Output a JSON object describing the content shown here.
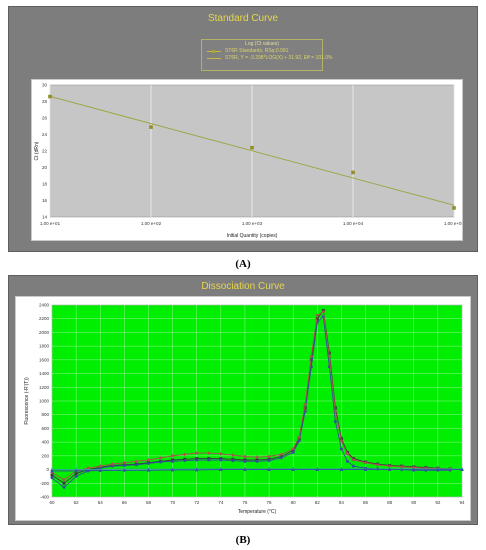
{
  "panel_a": {
    "title": "Standard Curve",
    "caption": "(A)",
    "legend_title": "Log (Ct values)",
    "legend_entries": [
      "ST6R Standards, RSq:0.991",
      "ST6R, Y = -3.298*LOG(X) + 31.92, Eff = 101.0%"
    ]
  },
  "panel_b": {
    "title": "Dissociation Curve",
    "caption": "(B)"
  },
  "colors": {
    "panel_bg": "#7d7d7d",
    "title": "#e6d84a",
    "plot_a_bg": "#c6c6c6",
    "plot_b_bg": "#00ee00",
    "fit_line": "#9aa33a",
    "grid": "#ffffff"
  },
  "chart_data": [
    {
      "type": "scatter",
      "title": "Standard Curve",
      "xlabel": "Initial Quantity (copies)",
      "ylabel": "Ct (dRn)",
      "x_scale": "log",
      "xlim": [
        10,
        100000
      ],
      "ylim": [
        14,
        30
      ],
      "x_ticks": [
        "1.00 e+01",
        "1.00 e+02",
        "1.00 e+03",
        "1.00 e+04",
        "1.00 e+05"
      ],
      "x_tick_values": [
        10,
        100,
        1000,
        10000,
        100000
      ],
      "y_ticks": [
        14,
        16,
        18,
        20,
        22,
        24,
        26,
        28,
        30
      ],
      "grid": true,
      "series": [
        {
          "name": "ST6R Standards",
          "x": [
            10,
            100,
            1000,
            10000,
            100000
          ],
          "y": [
            28.6,
            24.9,
            22.4,
            19.4,
            15.1
          ]
        }
      ],
      "fit": {
        "slope": -3.298,
        "intercept": 31.92
      }
    },
    {
      "type": "line",
      "title": "Dissociation Curve",
      "xlabel": "Temperature (°C)",
      "ylabel": "Fluorescence (-R'(T))",
      "xlim": [
        60,
        94
      ],
      "ylim": [
        -400,
        2400
      ],
      "x_ticks": [
        60,
        62,
        64,
        66,
        68,
        70,
        72,
        74,
        76,
        78,
        80,
        82,
        84,
        86,
        88,
        90,
        92,
        94
      ],
      "y_ticks": [
        -400,
        -200,
        0,
        200,
        400,
        600,
        800,
        1000,
        1200,
        1400,
        1600,
        1800,
        2000,
        2200,
        2400
      ],
      "grid": true,
      "series": [
        {
          "color": "#3a3a3a",
          "marker": "square",
          "x": [
            60,
            61,
            62,
            63,
            64,
            65,
            66,
            67,
            68,
            69,
            70,
            71,
            72,
            73,
            74,
            75,
            76,
            77,
            78,
            79,
            80,
            80.5,
            81,
            81.5,
            82,
            82.5,
            83,
            83.5,
            84,
            84.5,
            85,
            86,
            87,
            88,
            89,
            90,
            91,
            92,
            93
          ],
          "y": [
            -80,
            -200,
            -60,
            0,
            30,
            60,
            70,
            80,
            100,
            120,
            140,
            150,
            160,
            160,
            160,
            150,
            140,
            140,
            150,
            190,
            280,
            450,
            900,
            1600,
            2200,
            2320,
            1700,
            900,
            450,
            250,
            160,
            110,
            80,
            60,
            50,
            40,
            30,
            20,
            10
          ]
        },
        {
          "color": "#3050a0",
          "marker": "circle",
          "x": [
            60,
            61,
            62,
            63,
            64,
            65,
            66,
            67,
            68,
            69,
            70,
            71,
            72,
            73,
            74,
            75,
            76,
            77,
            78,
            79,
            80,
            80.5,
            81,
            81.5,
            82,
            82.5,
            83,
            83.5,
            84,
            84.5,
            85,
            86,
            87,
            88,
            89,
            90,
            91,
            92,
            93
          ],
          "y": [
            -120,
            -260,
            -100,
            -20,
            20,
            50,
            60,
            70,
            90,
            110,
            120,
            130,
            140,
            140,
            140,
            130,
            120,
            120,
            130,
            170,
            250,
            420,
            850,
            1500,
            2150,
            2230,
            1500,
            700,
            300,
            120,
            50,
            20,
            10,
            0,
            0,
            -10,
            -10,
            -10,
            -10
          ]
        },
        {
          "color": "#b05050",
          "marker": "diamond",
          "x": [
            60,
            61,
            62,
            63,
            64,
            65,
            66,
            67,
            68,
            69,
            70,
            71,
            72,
            73,
            74,
            75,
            76,
            77,
            78,
            79,
            80,
            80.5,
            81,
            81.5,
            82,
            82.5,
            83,
            83.5,
            84,
            84.5,
            85,
            86,
            87,
            88,
            89,
            90,
            91,
            92,
            93
          ],
          "y": [
            -40,
            -150,
            -20,
            20,
            50,
            80,
            100,
            120,
            140,
            170,
            200,
            220,
            240,
            240,
            230,
            210,
            190,
            180,
            190,
            220,
            300,
            480,
            950,
            1650,
            2250,
            2300,
            1650,
            850,
            420,
            230,
            140,
            100,
            70,
            50,
            40,
            30,
            20,
            15,
            10
          ]
        },
        {
          "color": "#2fa0a0",
          "marker": "triangle",
          "x": [
            60,
            62,
            64,
            66,
            68,
            70,
            72,
            74,
            76,
            78,
            80,
            82,
            84,
            86,
            88,
            90,
            92,
            94
          ],
          "y": [
            0,
            0,
            0,
            5,
            5,
            5,
            10,
            10,
            10,
            10,
            10,
            10,
            10,
            10,
            10,
            10,
            10,
            10
          ]
        },
        {
          "color": "#3050a0",
          "marker": "triangle",
          "x": [
            60,
            62,
            64,
            66,
            68,
            70,
            72,
            74,
            76,
            78,
            80,
            82,
            84,
            86,
            88,
            90,
            92,
            94
          ],
          "y": [
            -20,
            -20,
            -15,
            -10,
            -10,
            -5,
            -5,
            0,
            0,
            0,
            0,
            0,
            0,
            0,
            0,
            0,
            0,
            0
          ]
        }
      ]
    }
  ]
}
